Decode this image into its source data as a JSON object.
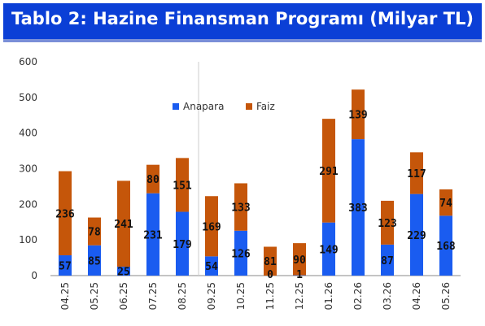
{
  "header": {
    "title": "Tablo 2: Hazine Finansman Programı (Milyar TL)"
  },
  "chart_data": {
    "type": "bar",
    "stacked": true,
    "categories": [
      "04.25",
      "05.25",
      "06.25",
      "07.25",
      "08.25",
      "09.25",
      "10.25",
      "11.25",
      "12.25",
      "01.26",
      "02.26",
      "03.26",
      "04.26",
      "05.26"
    ],
    "series": [
      {
        "name": "Anapara",
        "color": "#1a5cf0",
        "values": [
          57,
          85,
          25,
          231,
          179,
          54,
          126,
          0,
          1,
          149,
          383,
          87,
          229,
          168
        ]
      },
      {
        "name": "Faiz",
        "color": "#c5560a",
        "values": [
          236,
          78,
          241,
          80,
          151,
          169,
          133,
          81,
          90,
          291,
          139,
          123,
          117,
          74
        ]
      }
    ],
    "yticks": [
      "0",
      "100",
      "200",
      "300",
      "400",
      "500",
      "600"
    ],
    "ylim": [
      0,
      600
    ],
    "legend_position": "top-center",
    "grid": false
  }
}
